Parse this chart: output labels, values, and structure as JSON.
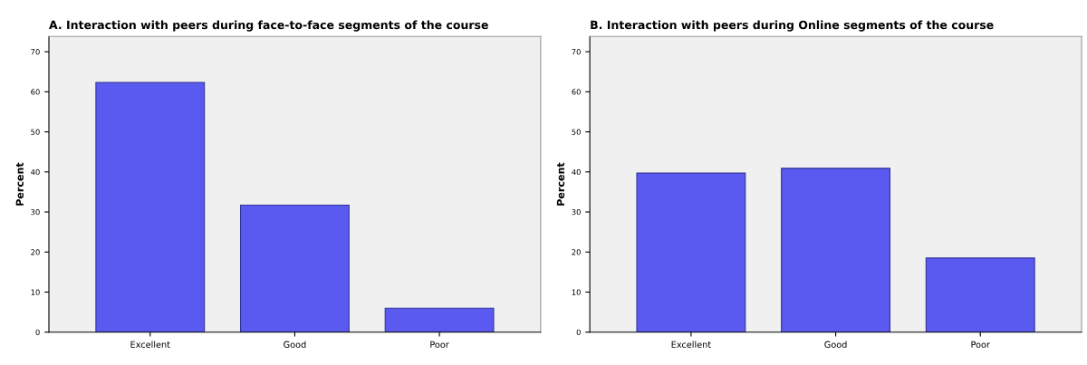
{
  "chart_data": [
    {
      "type": "bar",
      "title": "A. Interaction with peers during face-to-face segments of the course",
      "ylabel": "Percent",
      "categories": [
        "Excellent",
        "Good",
        "Poor"
      ],
      "values": [
        62.3,
        31.7,
        6.0
      ],
      "color": "#5a5af0",
      "ylim": [
        0,
        73.8
      ],
      "yticks": [
        0,
        10,
        20,
        30,
        40,
        50,
        60,
        70
      ]
    },
    {
      "type": "bar",
      "title": "B. Interaction with peers during Online segments of the course",
      "ylabel": "Percent",
      "categories": [
        "Excellent",
        "Good",
        "Poor"
      ],
      "values": [
        39.7,
        40.9,
        18.5
      ],
      "color": "#5a5af0",
      "ylim": [
        0,
        73.8
      ],
      "yticks": [
        0,
        10,
        20,
        30,
        40,
        50,
        60,
        70
      ]
    }
  ]
}
